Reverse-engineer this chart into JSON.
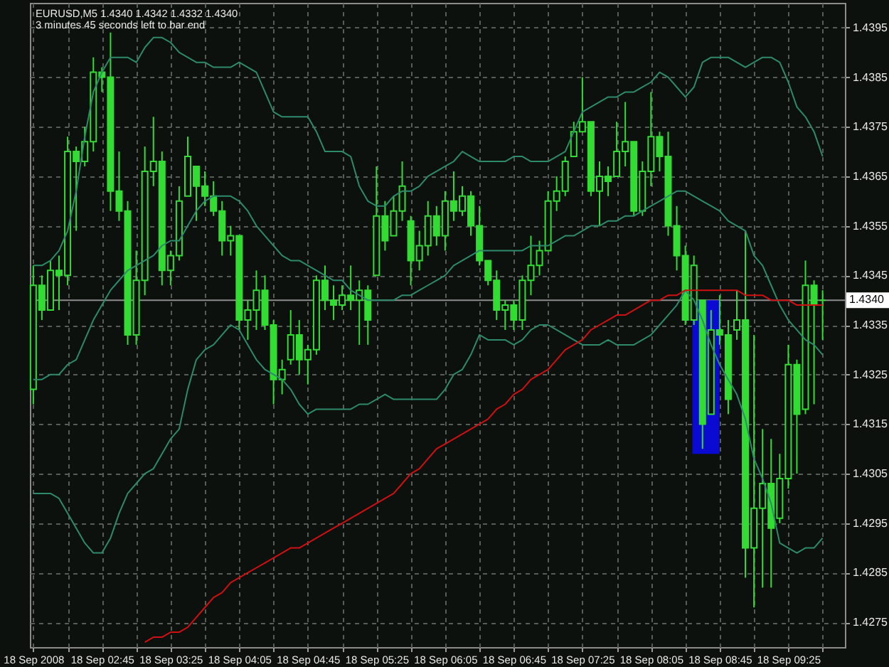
{
  "chart_data": {
    "type": "candlestick",
    "title": "EURUSD,M5 1.4340 1.4342 1.4332 1.4340",
    "subtitle": "3 minutes 45 seconds left to bar end",
    "x": [
      "2008-09-18T02:05",
      "2008-09-18T02:10",
      "2008-09-18T02:15",
      "2008-09-18T02:20",
      "2008-09-18T02:25",
      "2008-09-18T02:30",
      "2008-09-18T02:35",
      "2008-09-18T02:40",
      "2008-09-18T02:45",
      "2008-09-18T02:50",
      "2008-09-18T02:55",
      "2008-09-18T03:00",
      "2008-09-18T03:05",
      "2008-09-18T03:10",
      "2008-09-18T03:15",
      "2008-09-18T03:20",
      "2008-09-18T03:25",
      "2008-09-18T03:30",
      "2008-09-18T03:35",
      "2008-09-18T03:40",
      "2008-09-18T03:45",
      "2008-09-18T03:50",
      "2008-09-18T03:55",
      "2008-09-18T04:00",
      "2008-09-18T04:05",
      "2008-09-18T04:10",
      "2008-09-18T04:15",
      "2008-09-18T04:20",
      "2008-09-18T04:25",
      "2008-09-18T04:30",
      "2008-09-18T04:35",
      "2008-09-18T04:40",
      "2008-09-18T04:45",
      "2008-09-18T04:50",
      "2008-09-18T04:55",
      "2008-09-18T05:00",
      "2008-09-18T05:05",
      "2008-09-18T05:10",
      "2008-09-18T05:15",
      "2008-09-18T05:20",
      "2008-09-18T05:25",
      "2008-09-18T05:30",
      "2008-09-18T05:35",
      "2008-09-18T05:40",
      "2008-09-18T05:45",
      "2008-09-18T05:50",
      "2008-09-18T05:55",
      "2008-09-18T06:00",
      "2008-09-18T06:05",
      "2008-09-18T06:10",
      "2008-09-18T06:15",
      "2008-09-18T06:20",
      "2008-09-18T06:25",
      "2008-09-18T06:30",
      "2008-09-18T06:35",
      "2008-09-18T06:40",
      "2008-09-18T06:45",
      "2008-09-18T06:50",
      "2008-09-18T06:55",
      "2008-09-18T07:00",
      "2008-09-18T07:05",
      "2008-09-18T07:10",
      "2008-09-18T07:15",
      "2008-09-18T07:20",
      "2008-09-18T07:25",
      "2008-09-18T07:30",
      "2008-09-18T07:35",
      "2008-09-18T07:40",
      "2008-09-18T07:45",
      "2008-09-18T07:50",
      "2008-09-18T07:55",
      "2008-09-18T08:00",
      "2008-09-18T08:05",
      "2008-09-18T08:10",
      "2008-09-18T08:15",
      "2008-09-18T08:20",
      "2008-09-18T08:25",
      "2008-09-18T08:30",
      "2008-09-18T08:35",
      "2008-09-18T08:40",
      "2008-09-18T08:45",
      "2008-09-18T08:50",
      "2008-09-18T08:55",
      "2008-09-18T09:00",
      "2008-09-18T09:05",
      "2008-09-18T09:10",
      "2008-09-18T09:15",
      "2008-09-18T09:20",
      "2008-09-18T09:25",
      "2008-09-18T09:30",
      "2008-09-18T09:35",
      "2008-09-18T09:40",
      "2008-09-18T09:45"
    ],
    "series": [
      {
        "color": "#32dc32",
        "ohlc": [
          [
            1.4322,
            1.4347,
            1.4319,
            1.4343
          ],
          [
            1.4343,
            1.4345,
            1.4336,
            1.4338
          ],
          [
            1.4338,
            1.4348,
            1.4338,
            1.4346
          ],
          [
            1.4346,
            1.4349,
            1.4338,
            1.4345
          ],
          [
            1.4345,
            1.4373,
            1.4343,
            1.437
          ],
          [
            1.437,
            1.4371,
            1.4354,
            1.4368
          ],
          [
            1.4368,
            1.4375,
            1.4367,
            1.4372
          ],
          [
            1.4372,
            1.4389,
            1.437,
            1.4386
          ],
          [
            1.4386,
            1.4387,
            1.4382,
            1.4385
          ],
          [
            1.4385,
            1.4394,
            1.4358,
            1.4362
          ],
          [
            1.4362,
            1.437,
            1.4356,
            1.4358
          ],
          [
            1.4358,
            1.436,
            1.4331,
            1.4333
          ],
          [
            1.4333,
            1.435,
            1.4331,
            1.4344
          ],
          [
            1.4344,
            1.4371,
            1.4341,
            1.4366
          ],
          [
            1.4366,
            1.4377,
            1.4363,
            1.4368
          ],
          [
            1.4368,
            1.437,
            1.4343,
            1.4346
          ],
          [
            1.4346,
            1.435,
            1.4343,
            1.4349
          ],
          [
            1.4349,
            1.4363,
            1.4348,
            1.436
          ],
          [
            1.4361,
            1.4373,
            1.4361,
            1.4369
          ],
          [
            1.4367,
            1.4367,
            1.4356,
            1.4363
          ],
          [
            1.4363,
            1.4366,
            1.4359,
            1.4361
          ],
          [
            1.4361,
            1.4364,
            1.4357,
            1.4358
          ],
          [
            1.4358,
            1.436,
            1.4349,
            1.4352
          ],
          [
            1.4352,
            1.4355,
            1.4349,
            1.4353
          ],
          [
            1.4353,
            1.4353,
            1.4334,
            1.4336
          ],
          [
            1.4336,
            1.434,
            1.4332,
            1.4338
          ],
          [
            1.4338,
            1.4346,
            1.4334,
            1.4342
          ],
          [
            1.4342,
            1.4345,
            1.4334,
            1.4335
          ],
          [
            1.4335,
            1.4336,
            1.4319,
            1.4324
          ],
          [
            1.4324,
            1.4328,
            1.4321,
            1.4326
          ],
          [
            1.4328,
            1.4338,
            1.4327,
            1.4333
          ],
          [
            1.4333,
            1.4336,
            1.4325,
            1.4328
          ],
          [
            1.4328,
            1.4331,
            1.4323,
            1.433
          ],
          [
            1.433,
            1.4345,
            1.4329,
            1.4344
          ],
          [
            1.4344,
            1.4347,
            1.4338,
            1.434
          ],
          [
            1.434,
            1.4343,
            1.4336,
            1.4339
          ],
          [
            1.4339,
            1.4343,
            1.4338,
            1.4341
          ],
          [
            1.4341,
            1.4347,
            1.4338,
            1.434
          ],
          [
            1.434,
            1.4344,
            1.4331,
            1.4342
          ],
          [
            1.4342,
            1.4343,
            1.4331,
            1.4336
          ],
          [
            1.4345,
            1.4367,
            1.4345,
            1.4357
          ],
          [
            1.4357,
            1.436,
            1.435,
            1.4352
          ],
          [
            1.4353,
            1.4361,
            1.4353,
            1.4358
          ],
          [
            1.4358,
            1.4368,
            1.4356,
            1.4363
          ],
          [
            1.4356,
            1.4357,
            1.4343,
            1.4348
          ],
          [
            1.4348,
            1.4354,
            1.4346,
            1.4351
          ],
          [
            1.4351,
            1.436,
            1.4349,
            1.4357
          ],
          [
            1.4357,
            1.4359,
            1.4351,
            1.4353
          ],
          [
            1.4353,
            1.4362,
            1.435,
            1.436
          ],
          [
            1.436,
            1.4366,
            1.4356,
            1.4358
          ],
          [
            1.4358,
            1.4363,
            1.4357,
            1.4361
          ],
          [
            1.4361,
            1.4362,
            1.4353,
            1.4355
          ],
          [
            1.4355,
            1.4359,
            1.4347,
            1.4348
          ],
          [
            1.4348,
            1.4348,
            1.4343,
            1.4344
          ],
          [
            1.4344,
            1.4346,
            1.4336,
            1.4338
          ],
          [
            1.4338,
            1.434,
            1.4334,
            1.4339
          ],
          [
            1.4339,
            1.434,
            1.4334,
            1.4336
          ],
          [
            1.4336,
            1.4345,
            1.4334,
            1.4344
          ],
          [
            1.4344,
            1.4353,
            1.4341,
            1.4347
          ],
          [
            1.4347,
            1.4352,
            1.4345,
            1.435
          ],
          [
            1.435,
            1.4362,
            1.435,
            1.436
          ],
          [
            1.436,
            1.4365,
            1.4358,
            1.4362
          ],
          [
            1.4362,
            1.4369,
            1.4361,
            1.4368
          ],
          [
            1.4369,
            1.4376,
            1.4369,
            1.4374
          ],
          [
            1.4374,
            1.4385,
            1.4374,
            1.4376
          ],
          [
            1.4376,
            1.4376,
            1.4361,
            1.4362
          ],
          [
            1.4362,
            1.4368,
            1.4355,
            1.4365
          ],
          [
            1.4365,
            1.4367,
            1.4361,
            1.4364
          ],
          [
            1.4365,
            1.4376,
            1.4365,
            1.437
          ],
          [
            1.437,
            1.438,
            1.4367,
            1.4372
          ],
          [
            1.4372,
            1.4372,
            1.4357,
            1.4358
          ],
          [
            1.4358,
            1.4368,
            1.4357,
            1.4366
          ],
          [
            1.4366,
            1.4382,
            1.4363,
            1.4373
          ],
          [
            1.4373,
            1.4374,
            1.4366,
            1.4369
          ],
          [
            1.4369,
            1.4374,
            1.4353,
            1.4355
          ],
          [
            1.4355,
            1.4359,
            1.4346,
            1.4349
          ],
          [
            1.4349,
            1.4351,
            1.4335,
            1.4336
          ],
          [
            1.4336,
            1.4349,
            1.4335,
            1.4347
          ],
          [
            1.434,
            1.434,
            1.431,
            1.4315
          ],
          [
            1.4317,
            1.4338,
            1.4317,
            1.4334
          ],
          [
            1.4334,
            1.4341,
            1.4331,
            1.4333
          ],
          [
            1.4333,
            1.4336,
            1.4317,
            1.432
          ],
          [
            1.4334,
            1.4342,
            1.4332,
            1.4336
          ],
          [
            1.4336,
            1.4354,
            1.4284,
            1.429
          ],
          [
            1.429,
            1.4333,
            1.4278,
            1.4298
          ],
          [
            1.4298,
            1.4314,
            1.4282,
            1.4303
          ],
          [
            1.4303,
            1.4312,
            1.4282,
            1.4294
          ],
          [
            1.4296,
            1.4309,
            1.4295,
            1.4304
          ],
          [
            1.4304,
            1.4331,
            1.4302,
            1.4327
          ],
          [
            1.4327,
            1.4328,
            1.4305,
            1.4317
          ],
          [
            1.4318,
            1.4348,
            1.4317,
            1.4343
          ],
          [
            1.4343,
            1.4344,
            1.4319,
            1.4339
          ],
          [
            1.434,
            1.4342,
            1.4332,
            1.434
          ]
        ]
      },
      {
        "type": "line",
        "color": "#2d8a6c",
        "values": [
          1.4347,
          1.4347,
          1.4348,
          1.435,
          1.4354,
          1.4362,
          1.4373,
          1.4382,
          1.4386,
          1.4389,
          1.4389,
          1.4389,
          1.4388,
          1.4391,
          1.4393,
          1.4393,
          1.4392,
          1.439,
          1.4389,
          1.4388,
          1.4388,
          1.4387,
          1.4387,
          1.4387,
          1.4388,
          1.4387,
          1.4386,
          1.4382,
          1.4378,
          1.4377,
          1.4377,
          1.4377,
          1.4377,
          1.4374,
          1.437,
          1.437,
          1.437,
          1.4369,
          1.4363,
          1.436,
          1.4359,
          1.4359,
          1.4361,
          1.4362,
          1.4362,
          1.4363,
          1.4365,
          1.4366,
          1.4367,
          1.4368,
          1.437,
          1.4369,
          1.4368,
          1.4368,
          1.4368,
          1.4368,
          1.4369,
          1.4369,
          1.4368,
          1.4368,
          1.4368,
          1.4369,
          1.437,
          1.4374,
          1.4378,
          1.4379,
          1.438,
          1.4381,
          1.4381,
          1.4382,
          1.4382,
          1.4383,
          1.4384,
          1.4386,
          1.4385,
          1.4383,
          1.4381,
          1.4383,
          1.4388,
          1.4389,
          1.4389,
          1.4389,
          1.4388,
          1.4387,
          1.4388,
          1.4389,
          1.4389,
          1.4388,
          1.4384,
          1.4379,
          1.4377,
          1.4374,
          1.4369
        ]
      },
      {
        "type": "line",
        "color": "#2d8a6c",
        "values": [
          1.4324,
          1.4324,
          1.4325,
          1.4325,
          1.4327,
          1.4328,
          1.4332,
          1.4336,
          1.4339,
          1.4342,
          1.4344,
          1.4346,
          1.4347,
          1.4348,
          1.4349,
          1.4351,
          1.4352,
          1.4352,
          1.4355,
          1.4358,
          1.436,
          1.4361,
          1.4361,
          1.4361,
          1.436,
          1.4358,
          1.4355,
          1.4353,
          1.4351,
          1.4349,
          1.4348,
          1.4348,
          1.4347,
          1.4346,
          1.4345,
          1.4344,
          1.4344,
          1.4342,
          1.4341,
          1.434,
          1.434,
          1.434,
          1.434,
          1.4341,
          1.4341,
          1.4342,
          1.4343,
          1.4344,
          1.4345,
          1.4347,
          1.4348,
          1.4349,
          1.435,
          1.435,
          1.435,
          1.435,
          1.435,
          1.435,
          1.4351,
          1.4351,
          1.4351,
          1.4352,
          1.4353,
          1.4353,
          1.4354,
          1.4355,
          1.4355,
          1.4356,
          1.4356,
          1.4357,
          1.4357,
          1.4358,
          1.4359,
          1.436,
          1.4361,
          1.4362,
          1.4362,
          1.4361,
          1.436,
          1.4359,
          1.4358,
          1.4356,
          1.4355,
          1.4354,
          1.4349,
          1.4347,
          1.4343,
          1.4339,
          1.4336,
          1.4334,
          1.4332,
          1.4331,
          1.4329
        ]
      },
      {
        "type": "line",
        "color": "#2d8a6c",
        "values": [
          1.4301,
          1.4301,
          1.4301,
          1.43,
          1.4297,
          1.4294,
          1.4291,
          1.4289,
          1.4289,
          1.4292,
          1.4297,
          1.4301,
          1.4303,
          1.4305,
          1.4306,
          1.4309,
          1.4312,
          1.4314,
          1.4322,
          1.4328,
          1.433,
          1.4331,
          1.4333,
          1.4335,
          1.4334,
          1.4331,
          1.4328,
          1.4326,
          1.4325,
          1.4324,
          1.4322,
          1.4319,
          1.4317,
          1.4318,
          1.4318,
          1.4318,
          1.4318,
          1.4318,
          1.4319,
          1.4319,
          1.432,
          1.4321,
          1.432,
          1.432,
          1.432,
          1.432,
          1.432,
          1.432,
          1.4322,
          1.4325,
          1.4326,
          1.4329,
          1.4333,
          1.4332,
          1.4332,
          1.4332,
          1.4331,
          1.4332,
          1.4334,
          1.4335,
          1.4335,
          1.4334,
          1.4333,
          1.4332,
          1.4331,
          1.4331,
          1.4331,
          1.4332,
          1.4331,
          1.4331,
          1.4331,
          1.4332,
          1.4333,
          1.4335,
          1.4337,
          1.4339,
          1.4342,
          1.434,
          1.4336,
          1.4331,
          1.4327,
          1.4324,
          1.4321,
          1.4316,
          1.4308,
          1.4304,
          1.4299,
          1.4291,
          1.429,
          1.4289,
          1.429,
          1.429,
          1.4292
        ]
      },
      {
        "type": "line",
        "color": "#d01010",
        "values": [
          null,
          null,
          null,
          null,
          null,
          null,
          null,
          null,
          null,
          null,
          null,
          null,
          null,
          1.4271,
          1.4272,
          1.4272,
          1.4273,
          1.4273,
          1.4274,
          1.4276,
          1.4278,
          1.428,
          1.4281,
          1.4283,
          1.4284,
          1.4285,
          1.4286,
          1.4287,
          1.4288,
          1.4289,
          1.429,
          1.429,
          1.4291,
          1.4292,
          1.4293,
          1.4294,
          1.4295,
          1.4296,
          1.4297,
          1.4298,
          1.4299,
          1.43,
          1.4301,
          1.4303,
          1.4305,
          1.4306,
          1.4308,
          1.431,
          1.4311,
          1.4312,
          1.4313,
          1.4314,
          1.4315,
          1.4316,
          1.4318,
          1.4319,
          1.4321,
          1.4322,
          1.4324,
          1.4325,
          1.4326,
          1.4328,
          1.433,
          1.4331,
          1.4332,
          1.4334,
          1.4335,
          1.4336,
          1.4337,
          1.4337,
          1.4338,
          1.4339,
          1.434,
          1.434,
          1.4341,
          1.4341,
          1.4342,
          1.4342,
          1.4342,
          1.4342,
          1.4342,
          1.4342,
          1.4342,
          1.4341,
          1.4341,
          1.4341,
          1.434,
          1.434,
          1.434,
          1.4339,
          1.4339,
          1.4339,
          1.4339
        ]
      },
      {
        "type": "bar",
        "color": "#0a0ad2",
        "x": [
          "2008-09-18T08:37"
        ],
        "base": [
          1.4309
        ],
        "values": [
          0.0031
        ]
      }
    ],
    "xlim": [
      "2008-09-18T02:03",
      "2008-09-18T09:58"
    ],
    "xticks": [
      {
        "value": "2008-09-18T02:05",
        "label": "18 Sep 2008"
      },
      {
        "value": "2008-09-18T02:25",
        "label": null
      },
      {
        "value": "2008-09-18T02:45",
        "label": "18 Sep 02:45"
      },
      {
        "value": "2008-09-18T03:05",
        "label": null
      },
      {
        "value": "2008-09-18T03:25",
        "label": "18 Sep 03:25"
      },
      {
        "value": "2008-09-18T03:45",
        "label": null
      },
      {
        "value": "2008-09-18T04:05",
        "label": "18 Sep 04:05"
      },
      {
        "value": "2008-09-18T04:25",
        "label": null
      },
      {
        "value": "2008-09-18T04:45",
        "label": "18 Sep 04:45"
      },
      {
        "value": "2008-09-18T05:05",
        "label": null
      },
      {
        "value": "2008-09-18T05:25",
        "label": "18 Sep 05:25"
      },
      {
        "value": "2008-09-18T05:45",
        "label": null
      },
      {
        "value": "2008-09-18T06:05",
        "label": "18 Sep 06:05"
      },
      {
        "value": "2008-09-18T06:25",
        "label": null
      },
      {
        "value": "2008-09-18T06:45",
        "label": "18 Sep 06:45"
      },
      {
        "value": "2008-09-18T07:05",
        "label": null
      },
      {
        "value": "2008-09-18T07:25",
        "label": "18 Sep 07:25"
      },
      {
        "value": "2008-09-18T07:45",
        "label": null
      },
      {
        "value": "2008-09-18T08:05",
        "label": "18 Sep 08:05"
      },
      {
        "value": "2008-09-18T08:25",
        "label": null
      },
      {
        "value": "2008-09-18T08:45",
        "label": "18 Sep 08:45"
      },
      {
        "value": "2008-09-18T09:05",
        "label": null
      },
      {
        "value": "2008-09-18T09:25",
        "label": "18 Sep 09:25"
      },
      {
        "value": "2008-09-18T09:45",
        "label": null
      }
    ],
    "ylim": [
      1.427,
      1.44
    ],
    "yticks": [
      1.4275,
      1.4285,
      1.4295,
      1.4305,
      1.4315,
      1.4325,
      1.4335,
      1.4345,
      1.4355,
      1.4365,
      1.4375,
      1.4385,
      1.4395
    ],
    "ref_lines": [
      {
        "axis": "y",
        "value": 1.434,
        "label": "1.4340",
        "color": "#8c8c8c"
      }
    ],
    "grid": true
  }
}
